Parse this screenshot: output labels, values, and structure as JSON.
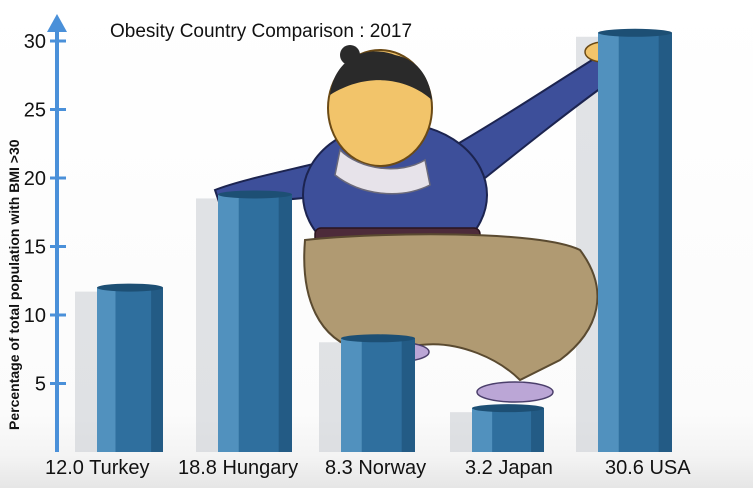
{
  "chart_data": {
    "type": "bar",
    "title": "Obesity Country Comparison : 2017",
    "ylabel": "Percentage of total population with BMI >30",
    "xlabel": "",
    "categories": [
      "12.0 Turkey",
      "18.8 Hungary",
      "8.3 Norway",
      "3.2 Japan",
      "30.6  USA"
    ],
    "values": [
      12.0,
      18.8,
      8.3,
      3.2,
      30.6
    ],
    "yticks": [
      "5",
      "10",
      "15",
      "20",
      "25",
      "30"
    ],
    "ylim": [
      0,
      32
    ],
    "grid": false,
    "legend": "none",
    "colors": {
      "bar_front": "#2f6f9e",
      "bar_side": "#5d9cc8",
      "bar_top": "#1d4f74",
      "axis": "#4a90d9",
      "shadow": "#c8ccd2"
    }
  },
  "illustration": {
    "icon": "cartoon-sumo-figure"
  }
}
